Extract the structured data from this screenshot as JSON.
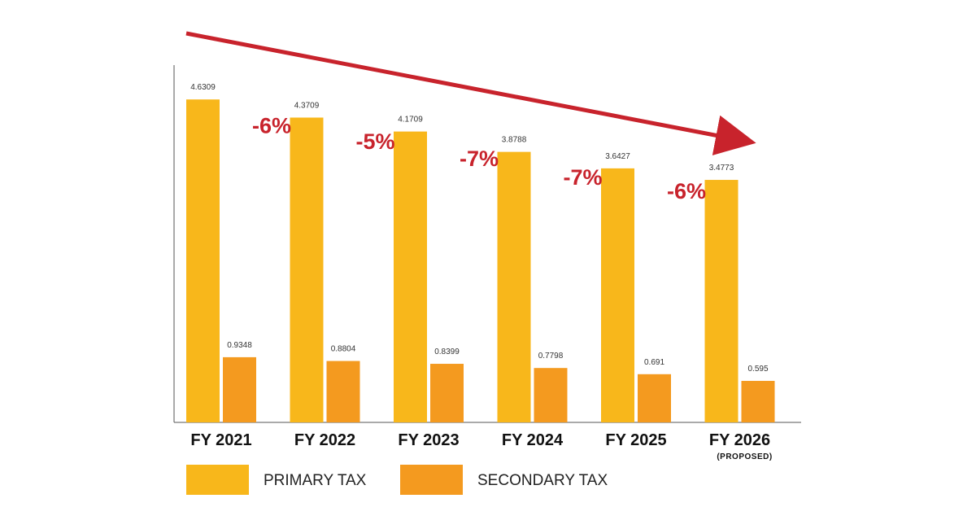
{
  "chart_data": {
    "type": "bar",
    "categories": [
      "FY 2021",
      "FY 2022",
      "FY 2023",
      "FY 2024",
      "FY 2025",
      "FY 2026"
    ],
    "category_sublabels": [
      "",
      "",
      "",
      "",
      "",
      "(PROPOSED)"
    ],
    "series": [
      {
        "name": "PRIMARY TAX",
        "values": [
          4.6309,
          4.3709,
          4.1709,
          3.8788,
          3.6427,
          3.4773
        ],
        "labels": [
          "4.6309",
          "4.3709",
          "4.1709",
          "3.8788",
          "3.6427",
          "3.4773"
        ],
        "color": "#f8b71b"
      },
      {
        "name": "SECONDARY TAX",
        "values": [
          0.9348,
          0.8804,
          0.8399,
          0.7798,
          0.691,
          0.595
        ],
        "labels": [
          "0.9348",
          "0.8804",
          "0.8399",
          "0.7798",
          "0.691",
          "0.595"
        ],
        "color": "#f49a1f"
      }
    ],
    "annotations": [
      "-6%",
      "-5%",
      "-7%",
      "-7%",
      "-6%"
    ],
    "annotation_color": "#c8232c",
    "trend_arrow_color": "#c8232c",
    "ylim": [
      0,
      5.1
    ],
    "grid": false,
    "legend_position": "bottom-left"
  }
}
